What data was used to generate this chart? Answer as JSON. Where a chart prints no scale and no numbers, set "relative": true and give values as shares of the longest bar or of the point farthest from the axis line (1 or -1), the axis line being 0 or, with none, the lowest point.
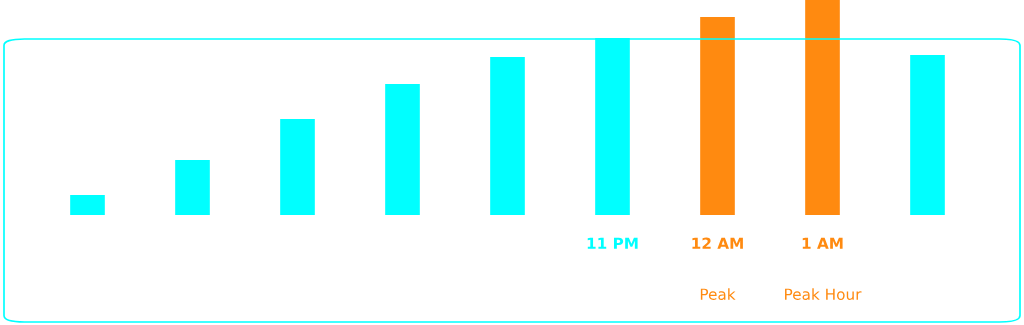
{
  "chart_data": {
    "type": "bar",
    "relative": true,
    "categories": [
      null,
      null,
      null,
      null,
      null,
      "11 PM",
      "12 AM",
      "1 AM",
      null
    ],
    "values": [
      0.093,
      0.256,
      0.447,
      0.609,
      0.735,
      0.823,
      0.921,
      1,
      0.744
    ],
    "colors": [
      "#00ffff",
      "#00ffff",
      "#00ffff",
      "#00ffff",
      "#00ffff",
      "#00ffff",
      "#ff8a10",
      "#ff8a10",
      "#00ffff"
    ],
    "annotations": [
      "Peak",
      "Peak Hour"
    ],
    "grid": false,
    "legend": false
  }
}
